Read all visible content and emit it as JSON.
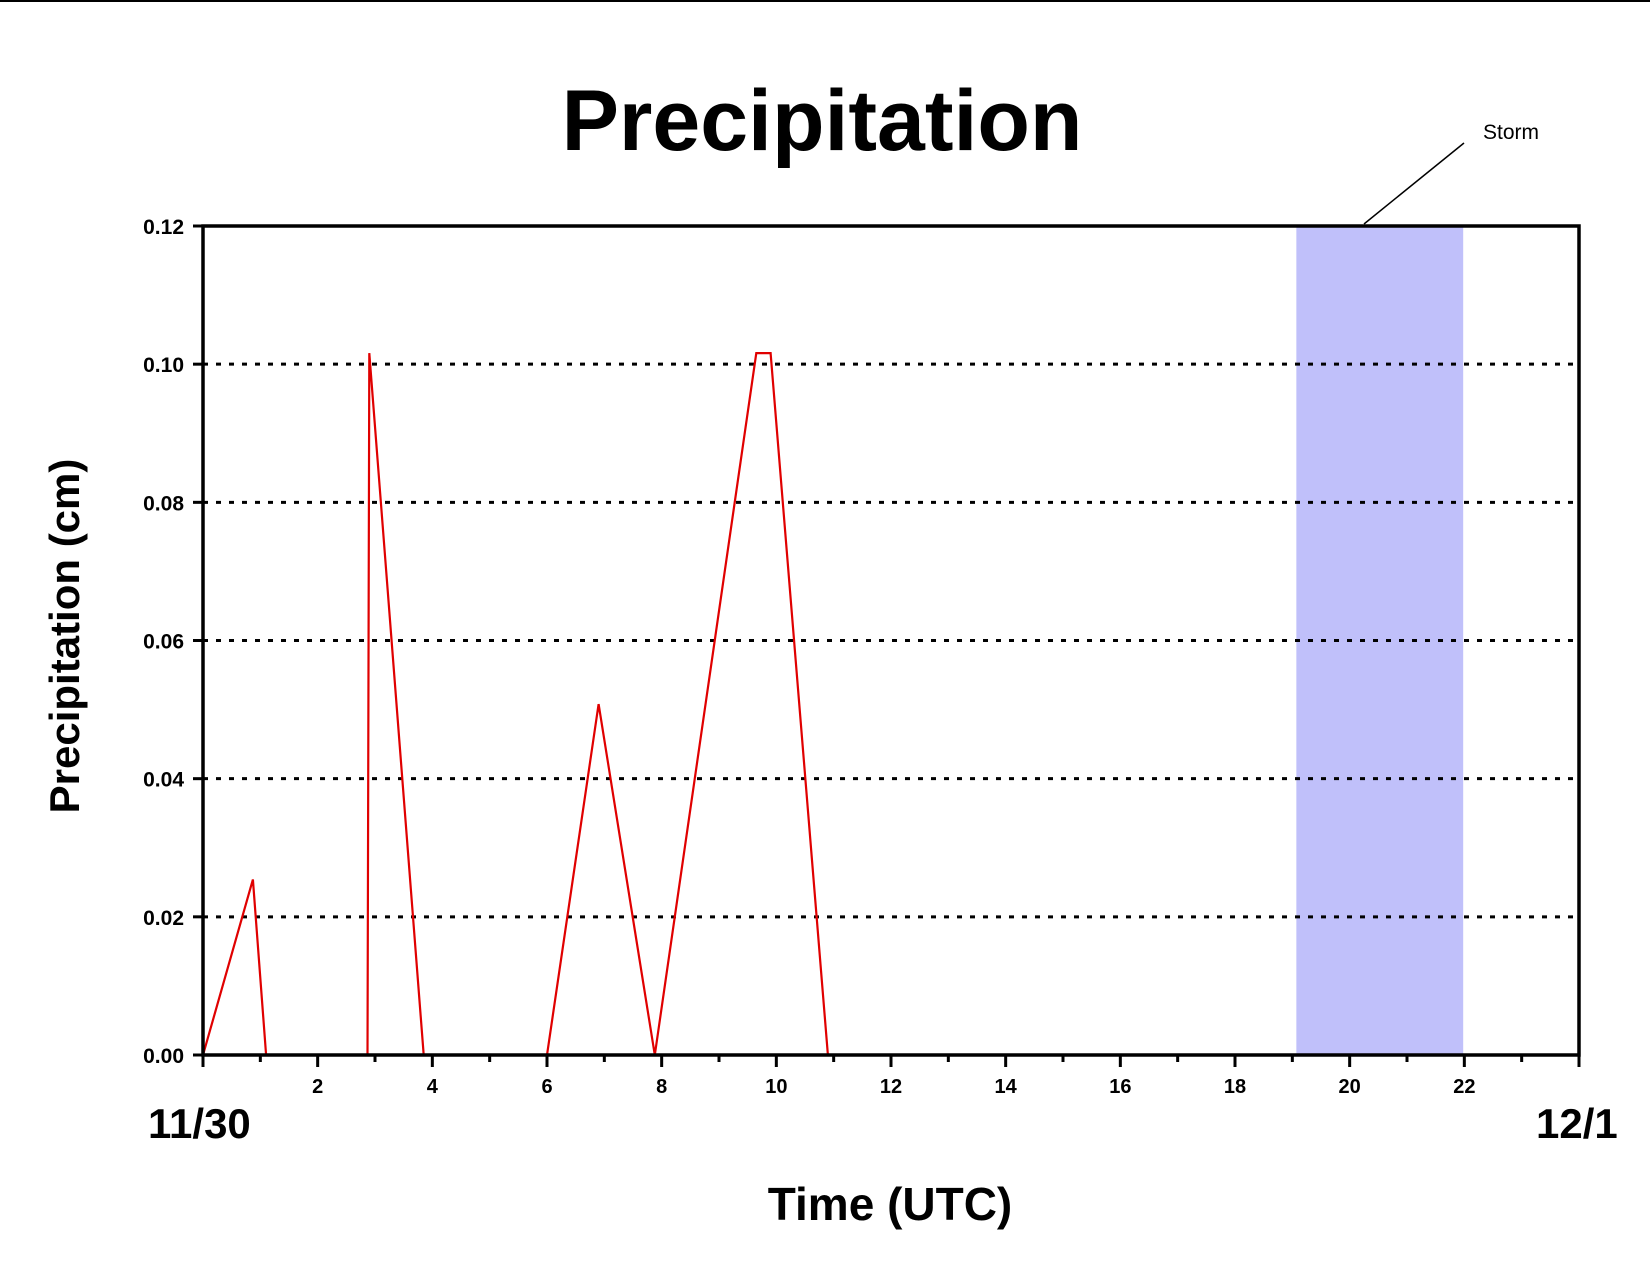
{
  "chart_data": {
    "type": "line",
    "title": "Precipitation",
    "xlabel": "Time (UTC)",
    "ylabel": "Precipitation (cm)",
    "xlim": [
      0,
      24
    ],
    "ylim": [
      0,
      0.12
    ],
    "x_ticks": [
      2,
      4,
      6,
      8,
      10,
      12,
      14,
      16,
      18,
      20,
      22
    ],
    "y_ticks": [
      "0.00",
      "0.02",
      "0.04",
      "0.06",
      "0.08",
      "0.10",
      "0.12"
    ],
    "grid": "horizontal dotted at 0.02, 0.04, 0.06, 0.08, 0.10",
    "date_labels": {
      "start": "11/30",
      "end": "12/1"
    },
    "series": [
      {
        "color": "#e00000",
        "x": [
          0,
          0.87,
          1.1,
          2.87,
          2.9,
          3.85,
          6.0,
          6.9,
          7.88,
          9.65,
          9.9,
          10.9,
          24
        ],
        "y": [
          0,
          0.0254,
          0,
          0,
          0.1016,
          0,
          0,
          0.0508,
          0,
          0.1016,
          0.1016,
          0,
          0
        ]
      }
    ],
    "shaded_regions": [
      {
        "label": "Storm",
        "x_start": 19.07,
        "x_end": 21.98,
        "color": "#c0c0fa"
      }
    ],
    "annotations": [
      {
        "text": "Storm"
      }
    ]
  }
}
